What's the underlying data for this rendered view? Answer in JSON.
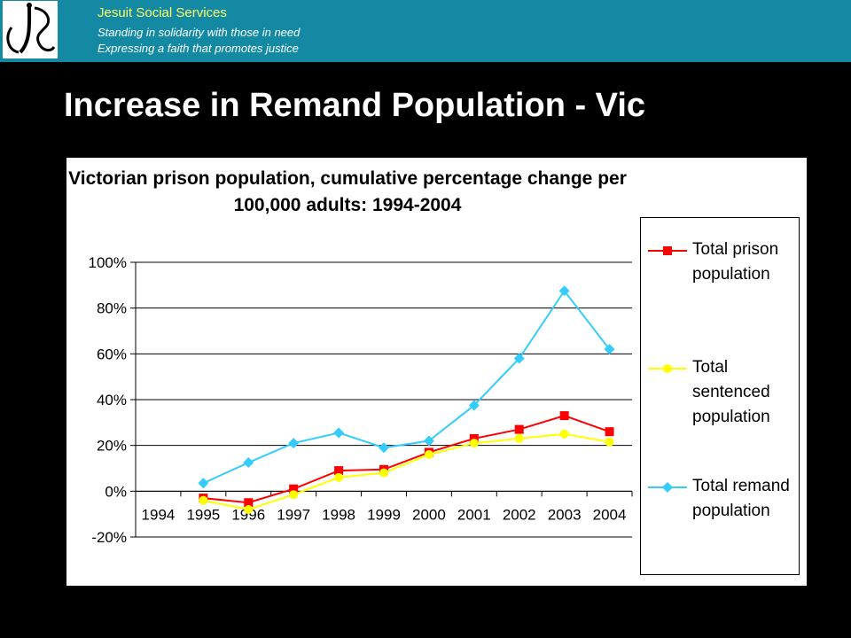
{
  "header": {
    "org_name": "Jesuit Social Services",
    "tagline_1": "Standing in solidarity with those in need",
    "tagline_2": "Expressing a faith that promotes justice",
    "bar_color": "#1489a3"
  },
  "page_title": "Increase in Remand Population - Vic",
  "chart_data": {
    "type": "line",
    "title_line1": "Victorian prison population, cumulative percentage change per",
    "title_line2": "100,000 adults: 1994-2004",
    "categories": [
      "1994",
      "1995",
      "1996",
      "1997",
      "1998",
      "1999",
      "2000",
      "2001",
      "2002",
      "2003",
      "2004"
    ],
    "y_ticks": [
      "100%",
      "80%",
      "60%",
      "40%",
      "20%",
      "0%",
      "-20%"
    ],
    "ylim": [
      -20,
      100
    ],
    "grid": true,
    "legend_position": "right",
    "series": [
      {
        "name": "Total prison population",
        "color": "#ff0000",
        "marker": "square",
        "values": [
          null,
          -3,
          -5,
          1,
          9,
          9.5,
          17,
          23,
          27,
          33,
          26
        ]
      },
      {
        "name": "Total sentenced population",
        "color": "#ffff00",
        "marker": "circle",
        "values": [
          null,
          -4,
          -8,
          -1.5,
          6,
          8,
          16,
          21,
          23,
          25,
          21.5
        ]
      },
      {
        "name": "Total remand population",
        "color": "#33ccff",
        "marker": "diamond",
        "values": [
          null,
          3.5,
          12.5,
          21,
          25.5,
          19,
          22,
          37.5,
          58,
          87.5,
          62
        ]
      }
    ]
  },
  "legend": {
    "entries": [
      {
        "lines": [
          "Total prison",
          "population"
        ]
      },
      {
        "lines": [
          "Total",
          "sentenced",
          "population"
        ]
      },
      {
        "lines": [
          "Total remand",
          "population"
        ]
      }
    ]
  }
}
